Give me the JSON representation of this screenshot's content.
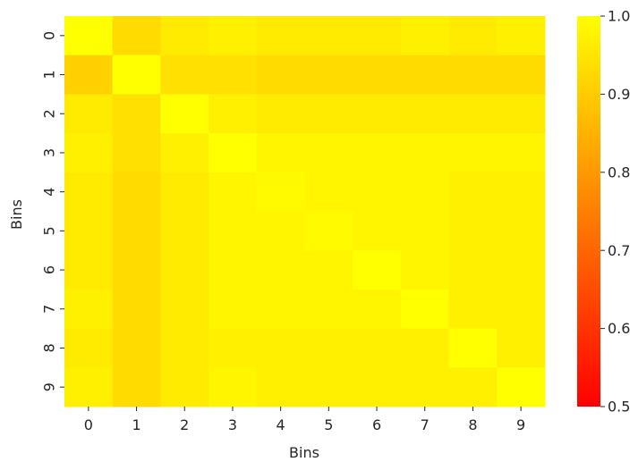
{
  "chart_data": {
    "type": "heatmap",
    "title": "",
    "xlabel": "Bins",
    "ylabel": "Bins",
    "x_categories": [
      "0",
      "1",
      "2",
      "3",
      "4",
      "5",
      "6",
      "7",
      "8",
      "9"
    ],
    "y_categories": [
      "0",
      "1",
      "2",
      "3",
      "4",
      "5",
      "6",
      "7",
      "8",
      "9"
    ],
    "values": [
      [
        1.0,
        0.93,
        0.96,
        0.97,
        0.96,
        0.96,
        0.96,
        0.97,
        0.96,
        0.97
      ],
      [
        0.91,
        1.0,
        0.94,
        0.94,
        0.93,
        0.93,
        0.93,
        0.93,
        0.93,
        0.93
      ],
      [
        0.96,
        0.94,
        1.0,
        0.97,
        0.96,
        0.96,
        0.96,
        0.96,
        0.96,
        0.96
      ],
      [
        0.97,
        0.94,
        0.97,
        1.0,
        0.98,
        0.98,
        0.98,
        0.98,
        0.98,
        0.98
      ],
      [
        0.96,
        0.93,
        0.96,
        0.98,
        0.99,
        0.98,
        0.98,
        0.98,
        0.97,
        0.97
      ],
      [
        0.96,
        0.93,
        0.96,
        0.98,
        0.98,
        0.99,
        0.98,
        0.98,
        0.97,
        0.97
      ],
      [
        0.96,
        0.93,
        0.96,
        0.98,
        0.98,
        0.98,
        1.0,
        0.98,
        0.97,
        0.97
      ],
      [
        0.97,
        0.93,
        0.96,
        0.98,
        0.98,
        0.98,
        0.98,
        1.0,
        0.97,
        0.97
      ],
      [
        0.96,
        0.93,
        0.96,
        0.97,
        0.97,
        0.97,
        0.97,
        0.97,
        1.0,
        0.97
      ],
      [
        0.97,
        0.93,
        0.96,
        0.98,
        0.97,
        0.97,
        0.97,
        0.97,
        0.97,
        1.0
      ]
    ],
    "colorbar": {
      "range": [
        0.5,
        1.0
      ],
      "ticks": [
        "0.5",
        "0.6",
        "0.7",
        "0.8",
        "0.9",
        "1.0"
      ],
      "colormap": "autumn",
      "low_color": "#ff0000",
      "high_color": "#ffff00"
    },
    "grid": false
  }
}
